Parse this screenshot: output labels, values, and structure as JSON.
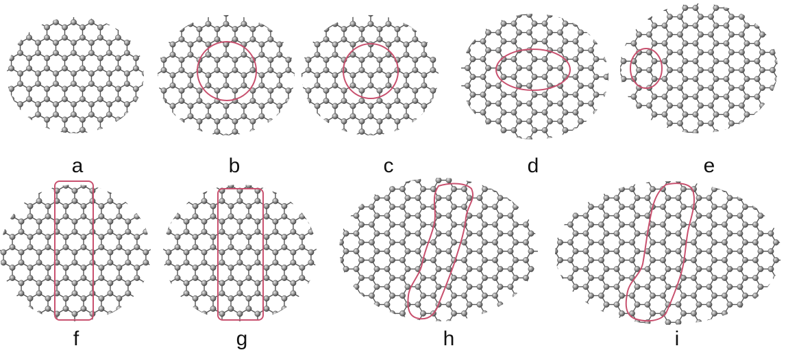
{
  "figure": {
    "panels": [
      {
        "label": "a",
        "highlight": "none"
      },
      {
        "label": "b",
        "highlight": "circle"
      },
      {
        "label": "c",
        "highlight": "circle"
      },
      {
        "label": "d",
        "highlight": "ellipse"
      },
      {
        "label": "e",
        "highlight": "small-ellipse"
      },
      {
        "label": "f",
        "highlight": "rectangle"
      },
      {
        "label": "g",
        "highlight": "rectangle"
      },
      {
        "label": "h",
        "highlight": "irregular"
      },
      {
        "label": "i",
        "highlight": "irregular"
      }
    ],
    "highlight_color": "#c8506e",
    "atom_color": "#9a9a9a"
  }
}
